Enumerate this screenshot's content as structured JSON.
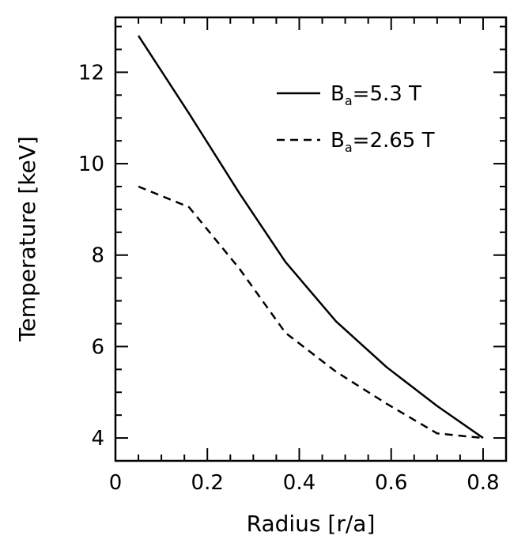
{
  "chart_data": {
    "type": "line",
    "title": "",
    "xlabel": "Radius [r/a]",
    "ylabel": "Temperature [keV]",
    "xlim": [
      0,
      0.85
    ],
    "ylim": [
      3.5,
      13.2
    ],
    "x_ticks": [
      0,
      0.2,
      0.4,
      0.6,
      0.8
    ],
    "x_tick_labels": [
      "0",
      "0.2",
      "0.4",
      "0.6",
      "0.8"
    ],
    "x_minor_step": 0.05,
    "y_ticks": [
      4,
      6,
      8,
      10,
      12
    ],
    "y_tick_labels": [
      "4",
      "6",
      "8",
      "10",
      "12"
    ],
    "y_minor_step": 0.5,
    "grid": false,
    "legend_position": "top-right",
    "series": [
      {
        "name": "B_a=5.3 T",
        "legend_main": "B",
        "legend_sub": "a",
        "legend_rest": "=5.3 T",
        "style": "solid",
        "color": "#000000",
        "x": [
          0.05,
          0.16,
          0.27,
          0.37,
          0.48,
          0.59,
          0.7,
          0.8
        ],
        "y": [
          12.8,
          11.1,
          9.35,
          7.85,
          6.55,
          5.55,
          4.7,
          4.0
        ]
      },
      {
        "name": "B_a=2.65 T",
        "legend_main": "B",
        "legend_sub": "a",
        "legend_rest": "=2.65 T",
        "style": "dashed",
        "color": "#000000",
        "x": [
          0.05,
          0.16,
          0.27,
          0.37,
          0.48,
          0.59,
          0.7,
          0.8
        ],
        "y": [
          9.5,
          9.05,
          7.7,
          6.3,
          5.45,
          4.75,
          4.1,
          4.0
        ]
      }
    ]
  }
}
